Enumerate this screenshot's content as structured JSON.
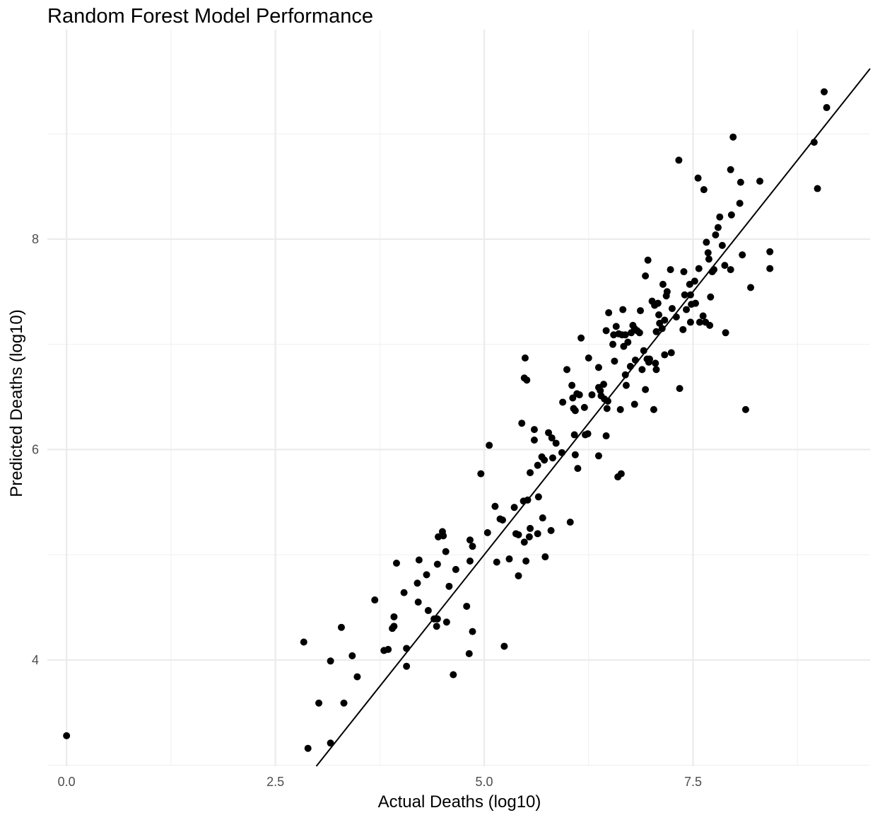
{
  "chart_data": {
    "type": "scatter",
    "title": "Random Forest Model Performance",
    "xlabel": "Actual Deaths (log10)",
    "ylabel": "Predicted Deaths (log10)",
    "xlim": [
      -0.23,
      9.62
    ],
    "ylim": [
      2.99,
      9.99
    ],
    "x_ticks": [
      0.0,
      2.5,
      5.0,
      7.5
    ],
    "x_tick_labels": [
      "0.0",
      "2.5",
      "5.0",
      "7.5"
    ],
    "y_ticks": [
      4,
      6,
      8
    ],
    "y_tick_labels": [
      "4",
      "6",
      "8"
    ],
    "grid": true,
    "legend": "none",
    "reference_line": {
      "slope": 1,
      "intercept": 0
    },
    "colors": {
      "points": "#000000",
      "line": "#000000",
      "grid_major": "#ebebeb",
      "grid_minor": "#f2f2f2",
      "background": "#ffffff"
    },
    "points": [
      [
        0.0,
        3.28
      ],
      [
        2.84,
        4.17
      ],
      [
        2.89,
        3.16
      ],
      [
        3.02,
        3.59
      ],
      [
        3.16,
        3.99
      ],
      [
        3.16,
        3.21
      ],
      [
        3.29,
        4.31
      ],
      [
        3.32,
        3.59
      ],
      [
        3.42,
        4.04
      ],
      [
        3.48,
        3.84
      ],
      [
        3.69,
        4.57
      ],
      [
        3.8,
        4.09
      ],
      [
        3.85,
        4.1
      ],
      [
        3.9,
        4.3
      ],
      [
        3.92,
        4.41
      ],
      [
        3.92,
        4.32
      ],
      [
        3.95,
        4.92
      ],
      [
        4.04,
        4.64
      ],
      [
        4.07,
        3.94
      ],
      [
        4.07,
        4.11
      ],
      [
        4.2,
        4.73
      ],
      [
        4.21,
        4.55
      ],
      [
        4.22,
        4.95
      ],
      [
        4.31,
        4.81
      ],
      [
        4.33,
        4.47
      ],
      [
        4.4,
        4.39
      ],
      [
        4.43,
        4.32
      ],
      [
        4.44,
        4.39
      ],
      [
        4.44,
        4.91
      ],
      [
        4.45,
        5.17
      ],
      [
        4.5,
        5.22
      ],
      [
        4.51,
        5.18
      ],
      [
        4.54,
        5.03
      ],
      [
        4.55,
        4.36
      ],
      [
        4.58,
        4.7
      ],
      [
        4.63,
        3.86
      ],
      [
        4.66,
        4.86
      ],
      [
        4.79,
        4.51
      ],
      [
        4.82,
        4.06
      ],
      [
        4.83,
        4.94
      ],
      [
        4.83,
        5.14
      ],
      [
        4.86,
        5.08
      ],
      [
        4.86,
        4.27
      ],
      [
        4.96,
        5.77
      ],
      [
        5.04,
        5.21
      ],
      [
        5.06,
        6.04
      ],
      [
        5.13,
        5.46
      ],
      [
        5.15,
        4.93
      ],
      [
        5.19,
        5.34
      ],
      [
        5.22,
        5.33
      ],
      [
        5.24,
        4.13
      ],
      [
        5.3,
        4.96
      ],
      [
        5.36,
        5.45
      ],
      [
        5.38,
        5.2
      ],
      [
        5.41,
        4.8
      ],
      [
        5.41,
        5.19
      ],
      [
        5.45,
        6.25
      ],
      [
        5.47,
        5.51
      ],
      [
        5.48,
        5.12
      ],
      [
        5.48,
        6.68
      ],
      [
        5.49,
        6.87
      ],
      [
        5.5,
        4.94
      ],
      [
        5.51,
        6.66
      ],
      [
        5.52,
        5.52
      ],
      [
        5.54,
        5.17
      ],
      [
        5.55,
        5.78
      ],
      [
        5.55,
        5.25
      ],
      [
        5.6,
        6.09
      ],
      [
        5.6,
        6.19
      ],
      [
        5.64,
        5.85
      ],
      [
        5.64,
        5.2
      ],
      [
        5.65,
        5.55
      ],
      [
        5.69,
        5.93
      ],
      [
        5.7,
        5.35
      ],
      [
        5.72,
        5.9
      ],
      [
        5.73,
        4.98
      ],
      [
        5.77,
        6.16
      ],
      [
        5.8,
        5.23
      ],
      [
        5.81,
        6.11
      ],
      [
        5.82,
        5.92
      ],
      [
        5.86,
        6.06
      ],
      [
        5.93,
        5.97
      ],
      [
        5.94,
        6.45
      ],
      [
        5.99,
        6.76
      ],
      [
        6.03,
        5.31
      ],
      [
        6.05,
        6.61
      ],
      [
        6.06,
        6.49
      ],
      [
        6.07,
        6.39
      ],
      [
        6.08,
        6.14
      ],
      [
        6.09,
        5.95
      ],
      [
        6.09,
        6.37
      ],
      [
        6.11,
        6.53
      ],
      [
        6.12,
        5.82
      ],
      [
        6.14,
        6.52
      ],
      [
        6.16,
        7.06
      ],
      [
        6.2,
        6.4
      ],
      [
        6.21,
        6.14
      ],
      [
        6.24,
        6.15
      ],
      [
        6.25,
        6.87
      ],
      [
        6.29,
        6.52
      ],
      [
        6.37,
        6.59
      ],
      [
        6.37,
        6.78
      ],
      [
        6.37,
        5.94
      ],
      [
        6.39,
        6.56
      ],
      [
        6.4,
        6.51
      ],
      [
        6.43,
        6.62
      ],
      [
        6.44,
        6.48
      ],
      [
        6.46,
        7.13
      ],
      [
        6.46,
        6.13
      ],
      [
        6.47,
        6.39
      ],
      [
        6.48,
        6.46
      ],
      [
        6.49,
        7.3
      ],
      [
        6.54,
        7.0
      ],
      [
        6.55,
        7.09
      ],
      [
        6.56,
        6.84
      ],
      [
        6.58,
        7.17
      ],
      [
        6.6,
        5.74
      ],
      [
        6.61,
        7.1
      ],
      [
        6.63,
        6.38
      ],
      [
        6.64,
        5.77
      ],
      [
        6.65,
        7.09
      ],
      [
        6.66,
        7.33
      ],
      [
        6.67,
        6.98
      ],
      [
        6.69,
        6.71
      ],
      [
        6.69,
        7.09
      ],
      [
        6.7,
        6.61
      ],
      [
        6.72,
        7.02
      ],
      [
        6.75,
        6.79
      ],
      [
        6.76,
        7.11
      ],
      [
        6.78,
        7.18
      ],
      [
        6.8,
        7.15
      ],
      [
        6.8,
        6.43
      ],
      [
        6.81,
        6.85
      ],
      [
        6.83,
        7.13
      ],
      [
        6.86,
        7.11
      ],
      [
        6.87,
        7.32
      ],
      [
        6.89,
        6.76
      ],
      [
        6.91,
        6.94
      ],
      [
        6.93,
        6.57
      ],
      [
        6.93,
        7.65
      ],
      [
        6.95,
        6.86
      ],
      [
        6.96,
        7.8
      ],
      [
        6.97,
        6.83
      ],
      [
        6.98,
        6.86
      ],
      [
        7.01,
        7.41
      ],
      [
        7.03,
        6.38
      ],
      [
        7.04,
        7.37
      ],
      [
        7.05,
        6.82
      ],
      [
        7.06,
        7.12
      ],
      [
        7.06,
        6.76
      ],
      [
        7.08,
        7.39
      ],
      [
        7.09,
        7.28
      ],
      [
        7.1,
        7.2
      ],
      [
        7.13,
        7.15
      ],
      [
        7.14,
        7.57
      ],
      [
        7.16,
        6.9
      ],
      [
        7.16,
        7.23
      ],
      [
        7.18,
        7.46
      ],
      [
        7.19,
        7.5
      ],
      [
        7.23,
        7.71
      ],
      [
        7.24,
        6.92
      ],
      [
        7.25,
        7.34
      ],
      [
        7.3,
        7.26
      ],
      [
        7.33,
        8.75
      ],
      [
        7.34,
        6.58
      ],
      [
        7.38,
        7.14
      ],
      [
        7.39,
        7.69
      ],
      [
        7.4,
        7.47
      ],
      [
        7.42,
        7.33
      ],
      [
        7.46,
        7.57
      ],
      [
        7.47,
        7.21
      ],
      [
        7.47,
        7.47
      ],
      [
        7.48,
        7.38
      ],
      [
        7.52,
        7.6
      ],
      [
        7.53,
        7.39
      ],
      [
        7.56,
        8.58
      ],
      [
        7.57,
        7.72
      ],
      [
        7.58,
        7.21
      ],
      [
        7.62,
        7.27
      ],
      [
        7.63,
        8.47
      ],
      [
        7.65,
        7.21
      ],
      [
        7.66,
        7.97
      ],
      [
        7.68,
        7.87
      ],
      [
        7.69,
        7.81
      ],
      [
        7.7,
        7.18
      ],
      [
        7.71,
        7.45
      ],
      [
        7.73,
        7.69
      ],
      [
        7.75,
        7.71
      ],
      [
        7.77,
        8.04
      ],
      [
        7.8,
        8.11
      ],
      [
        7.82,
        8.21
      ],
      [
        7.85,
        7.94
      ],
      [
        7.88,
        7.75
      ],
      [
        7.89,
        7.11
      ],
      [
        7.95,
        8.66
      ],
      [
        7.95,
        7.71
      ],
      [
        7.96,
        8.23
      ],
      [
        7.98,
        8.97
      ],
      [
        8.06,
        8.34
      ],
      [
        8.07,
        8.54
      ],
      [
        8.09,
        7.85
      ],
      [
        8.13,
        6.38
      ],
      [
        8.19,
        7.54
      ],
      [
        8.3,
        8.55
      ],
      [
        8.42,
        7.88
      ],
      [
        8.42,
        7.72
      ],
      [
        8.95,
        8.92
      ],
      [
        8.99,
        8.48
      ],
      [
        9.07,
        9.4
      ],
      [
        9.1,
        9.25
      ]
    ]
  }
}
